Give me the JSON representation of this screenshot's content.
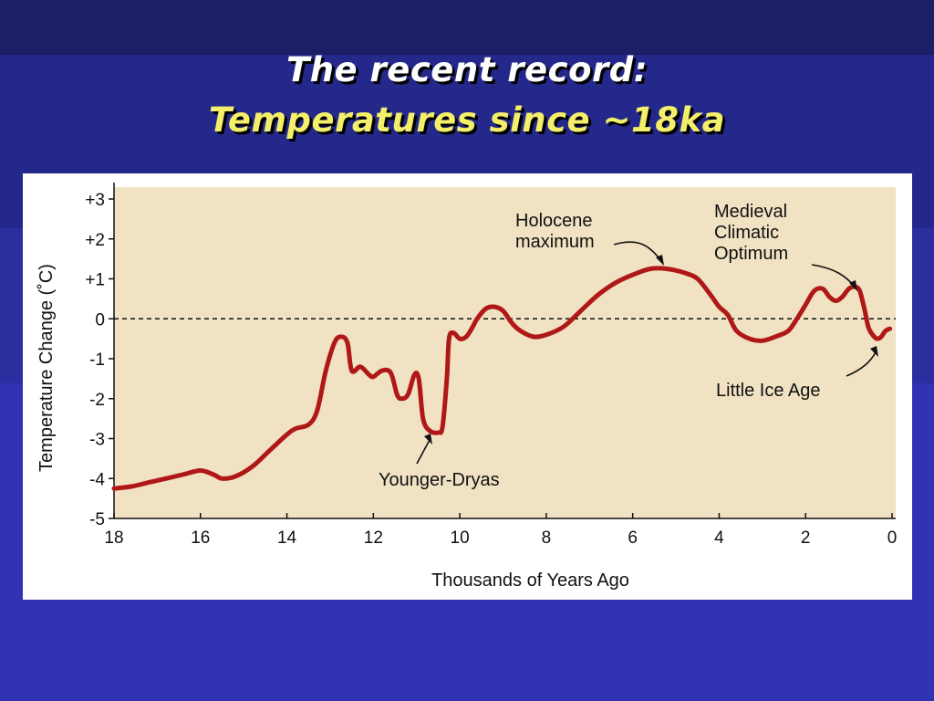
{
  "slide": {
    "title_line1": "The recent record:",
    "title_line2": "Temperatures since ~18ka",
    "title1_color": "#ffffff",
    "title2_color": "#f4ef6a"
  },
  "chart_data": {
    "type": "line",
    "title": "",
    "xlabel": "Thousands of Years Ago",
    "ylabel": "Temperature Change (˚C)",
    "xlim": [
      18,
      0
    ],
    "ylim": [
      -5,
      3
    ],
    "x_reversed": true,
    "x_ticks": [
      "18",
      "16",
      "14",
      "12",
      "10",
      "8",
      "6",
      "4",
      "2",
      "0"
    ],
    "y_ticks": [
      "+3",
      "+2",
      "+1",
      "0",
      "-1",
      "-2",
      "-3",
      "-4",
      "-5"
    ],
    "zero_line": "dashed",
    "line_color": "#b01818",
    "background_color": "#f0e2c2",
    "series": [
      {
        "name": "",
        "x": [
          18,
          17.6,
          17.2,
          16.8,
          16.4,
          16.0,
          15.7,
          15.5,
          15.2,
          14.8,
          14.4,
          14.0,
          13.8,
          13.5,
          13.3,
          13.1,
          12.9,
          12.75,
          12.6,
          12.5,
          12.3,
          12.1,
          12.0,
          11.8,
          11.6,
          11.45,
          11.35,
          11.2,
          11.05,
          10.95,
          10.85,
          10.7,
          10.5,
          10.4,
          10.3,
          10.25,
          10.15,
          10.0,
          9.85,
          9.7,
          9.6,
          9.4,
          9.2,
          9.0,
          8.8,
          8.6,
          8.3,
          8.0,
          7.6,
          7.2,
          6.8,
          6.4,
          6.0,
          5.6,
          5.2,
          4.8,
          4.5,
          4.2,
          4.0,
          3.8,
          3.6,
          3.3,
          3.0,
          2.7,
          2.4,
          2.2,
          2.0,
          1.8,
          1.6,
          1.45,
          1.3,
          1.15,
          1.0,
          0.85,
          0.75,
          0.65,
          0.55,
          0.45,
          0.35,
          0.25,
          0.15,
          0.05
        ],
        "values": [
          -4.25,
          -4.2,
          -4.1,
          -4.0,
          -3.9,
          -3.8,
          -3.9,
          -4.0,
          -3.95,
          -3.7,
          -3.3,
          -2.9,
          -2.75,
          -2.65,
          -2.3,
          -1.3,
          -0.6,
          -0.45,
          -0.6,
          -1.3,
          -1.2,
          -1.4,
          -1.45,
          -1.3,
          -1.35,
          -1.9,
          -2.0,
          -1.9,
          -1.4,
          -1.5,
          -2.5,
          -2.8,
          -2.85,
          -2.7,
          -1.5,
          -0.5,
          -0.35,
          -0.5,
          -0.45,
          -0.2,
          0.0,
          0.25,
          0.3,
          0.2,
          -0.1,
          -0.3,
          -0.45,
          -0.4,
          -0.2,
          0.2,
          0.6,
          0.9,
          1.1,
          1.25,
          1.25,
          1.15,
          1.0,
          0.6,
          0.3,
          0.1,
          -0.3,
          -0.5,
          -0.55,
          -0.45,
          -0.3,
          0.0,
          0.35,
          0.7,
          0.75,
          0.55,
          0.45,
          0.55,
          0.75,
          0.8,
          0.7,
          0.3,
          -0.2,
          -0.4,
          -0.5,
          -0.45,
          -0.3,
          -0.25
        ]
      }
    ],
    "annotations": [
      {
        "id": "holocene",
        "lines": [
          "Holocene",
          "maximum"
        ],
        "x": 5.3,
        "y": 1.25
      },
      {
        "id": "medieval",
        "lines": [
          "Medieval",
          "Climatic",
          "Optimum"
        ],
        "x": 0.8,
        "y": 0.8
      },
      {
        "id": "little-ice-age",
        "lines": [
          "Little Ice Age"
        ],
        "x": 0.35,
        "y": -0.48
      },
      {
        "id": "younger-dryas",
        "lines": [
          "Younger-Dryas"
        ],
        "x": 10.6,
        "y": -2.85
      }
    ]
  }
}
